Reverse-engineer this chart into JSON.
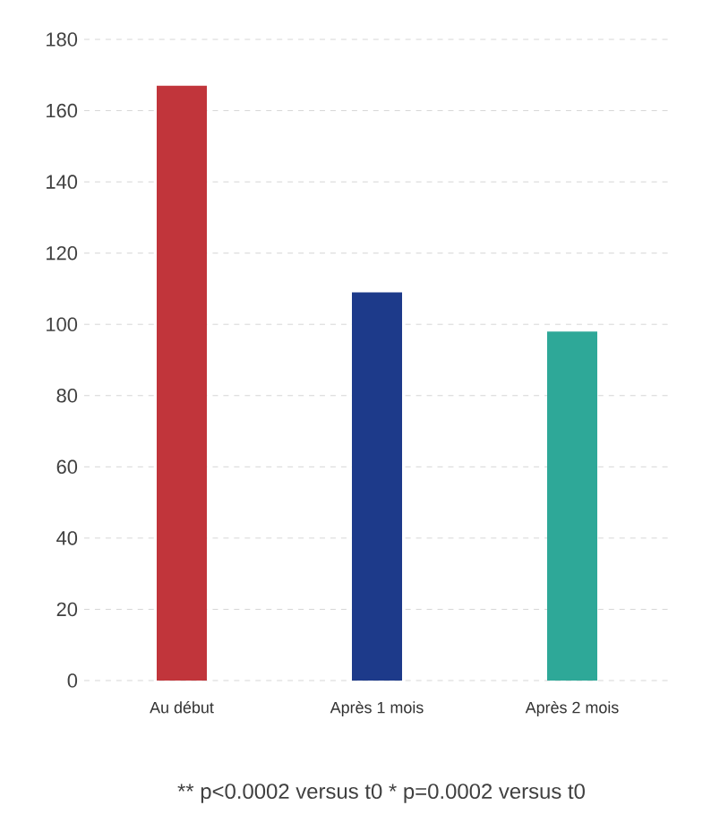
{
  "chart_data": {
    "type": "bar",
    "categories": [
      "Au début",
      "Après 1 mois",
      "Après 2 mois"
    ],
    "values": [
      167,
      109,
      98
    ],
    "colors": [
      "#c1353b",
      "#1d3a8a",
      "#2ea898"
    ],
    "ylim": [
      0,
      180
    ],
    "yticks": [
      0,
      20,
      40,
      60,
      80,
      100,
      120,
      140,
      160,
      180
    ],
    "grid": "y",
    "annotations": [
      "** p<0.0002 versus t0 * p=0.0002 versus t0"
    ]
  }
}
